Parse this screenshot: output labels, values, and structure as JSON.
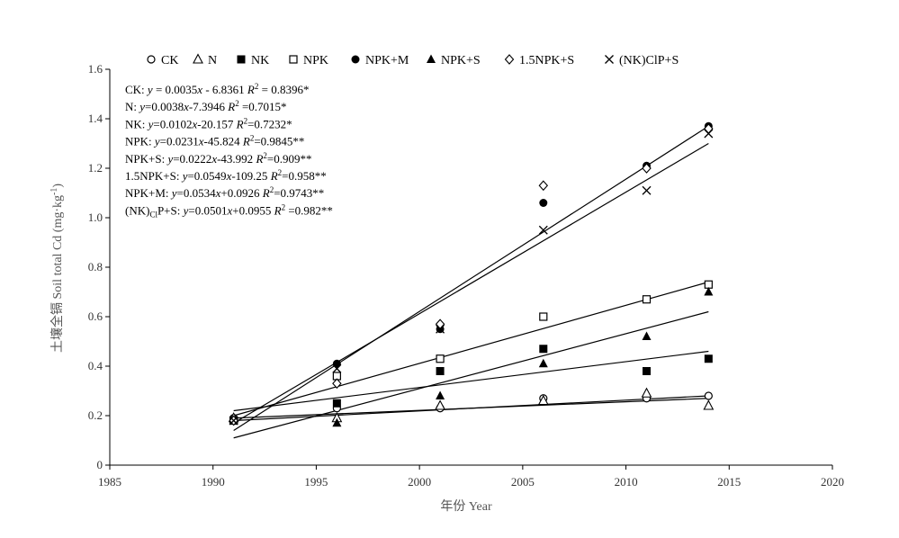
{
  "chart_data": {
    "type": "scatter",
    "title": "",
    "xlabel": "年份  Year",
    "ylabel": "土壤全镉 Soil total Cd (mg·kg-1)",
    "ylabel_main": "土壤全镉 Soil total Cd (mg·kg",
    "ylabel_sup": "-1",
    "ylabel_close": ")",
    "xlim": [
      1985,
      2020
    ],
    "ylim": [
      0,
      1.6
    ],
    "x_ticks": [
      1985,
      1990,
      1995,
      2000,
      2005,
      2010,
      2015,
      2020
    ],
    "y_ticks": [
      0,
      0.2,
      0.4,
      0.6,
      0.8,
      1.0,
      1.2,
      1.4,
      1.6
    ],
    "y_tick_labels": [
      "0",
      "0.2",
      "0.4",
      "0.6",
      "0.8",
      "1.0",
      "1.2",
      "1.4",
      "1.6"
    ],
    "grid": false,
    "legend_position": "top",
    "series": [
      {
        "name": "CK",
        "marker": "open-circle",
        "x": [
          1991,
          1996,
          2001,
          2006,
          2011,
          2014
        ],
        "y": [
          0.19,
          0.23,
          0.23,
          0.27,
          0.27,
          0.28
        ]
      },
      {
        "name": "N",
        "marker": "open-triangle",
        "x": [
          1991,
          1996,
          2001,
          2006,
          2011,
          2014
        ],
        "y": [
          0.19,
          0.19,
          0.24,
          0.26,
          0.29,
          0.24
        ]
      },
      {
        "name": "NK",
        "marker": "filled-square",
        "x": [
          1991,
          1996,
          2001,
          2006,
          2011,
          2014
        ],
        "y": [
          0.18,
          0.25,
          0.38,
          0.47,
          0.38,
          0.43
        ]
      },
      {
        "name": "NPK",
        "marker": "open-square",
        "x": [
          1991,
          1996,
          2001,
          2006,
          2011,
          2014
        ],
        "y": [
          0.18,
          0.36,
          0.43,
          0.6,
          0.67,
          0.73
        ]
      },
      {
        "name": "NPK+M",
        "marker": "filled-circle",
        "x": [
          1991,
          1996,
          2001,
          2006,
          2011,
          2014
        ],
        "y": [
          0.18,
          0.41,
          0.55,
          1.06,
          1.21,
          1.37
        ]
      },
      {
        "name": "NPK+S",
        "marker": "filled-triangle",
        "x": [
          1991,
          1996,
          2001,
          2006,
          2011,
          2014
        ],
        "y": [
          0.18,
          0.17,
          0.28,
          0.41,
          0.52,
          0.7
        ]
      },
      {
        "name": "1.5NPK+S",
        "marker": "open-diamond",
        "x": [
          1991,
          1996,
          2001,
          2006,
          2011,
          2014
        ],
        "y": [
          0.18,
          0.33,
          0.57,
          1.13,
          1.2,
          1.36
        ]
      },
      {
        "name": "(NK)ClP+S",
        "marker": "cross",
        "x": [
          1991,
          1996,
          2001,
          2006,
          2011,
          2014
        ],
        "y": [
          0.18,
          0.39,
          0.55,
          0.95,
          1.11,
          1.34
        ]
      }
    ],
    "trendlines": [
      {
        "x": [
          1991,
          2014
        ],
        "y": [
          0.19,
          0.27
        ]
      },
      {
        "x": [
          1991,
          2014
        ],
        "y": [
          0.18,
          0.28
        ]
      },
      {
        "x": [
          1991,
          2014
        ],
        "y": [
          0.22,
          0.46
        ]
      },
      {
        "x": [
          1991,
          2014
        ],
        "y": [
          0.2,
          0.74
        ]
      },
      {
        "x": [
          1991,
          2014
        ],
        "y": [
          0.11,
          0.62
        ]
      },
      {
        "x": [
          1991,
          2014
        ],
        "y": [
          0.17,
          1.3
        ]
      },
      {
        "x": [
          1991,
          2014
        ],
        "y": [
          0.14,
          1.37
        ]
      }
    ],
    "annotations": [
      {
        "name": "CK",
        "label": "CK: ",
        "eq": "y = 0.0035x - 6.8361",
        "r2": "R2 = 0.8396*"
      },
      {
        "name": "N",
        "label": "N: ",
        "eq": "y=0.0038x-7.3946",
        "r2": "R2 =0.7015*"
      },
      {
        "name": "NK",
        "label": "NK: ",
        "eq": "y=0.0102x-20.157",
        "r2": "R2=0.7232*"
      },
      {
        "name": "NPK",
        "label": "NPK: ",
        "eq": "y=0.0231x-45.824",
        "r2": "R2=0.9845**"
      },
      {
        "name": "NPK+S",
        "label": "NPK+S: ",
        "eq": "y=0.0222x-43.992",
        "r2": "R2=0.909**"
      },
      {
        "name": "1.5NPK+S",
        "label": "1.5NPK+S: ",
        "eq": "y=0.0549x-109.25",
        "r2": "R2=0.958**"
      },
      {
        "name": "NPK+M",
        "label": "NPK+M: ",
        "eq": "y=0.0534x+0.0926",
        "r2": "R2=0.9743**"
      },
      {
        "name": "(NK)ClP+S",
        "label": "(NK)ClP+S: ",
        "eq": "y=0.0501x+0.0955",
        "r2": "R2 =0.982**"
      }
    ]
  }
}
